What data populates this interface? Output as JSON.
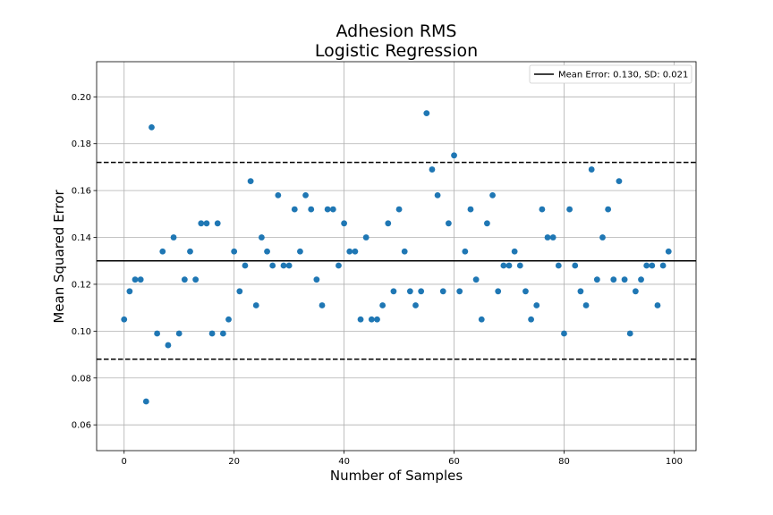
{
  "chart_data": {
    "type": "scatter",
    "title": [
      "Adhesion RMS",
      "Logistic Regression"
    ],
    "xlabel": "Number of Samples",
    "ylabel": "Mean Squared Error",
    "xlim": [
      -5,
      104
    ],
    "ylim": [
      0.049,
      0.215
    ],
    "xticks": [
      0,
      20,
      40,
      60,
      80,
      100
    ],
    "yticks": [
      0.06,
      0.08,
      0.1,
      0.12,
      0.14,
      0.16,
      0.18,
      0.2
    ],
    "ytick_labels": [
      "0.06",
      "0.08",
      "0.10",
      "0.12",
      "0.14",
      "0.16",
      "0.18",
      "0.20"
    ],
    "grid": true,
    "legend_position": "top-right",
    "mean_line": {
      "value": 0.13,
      "label": "Mean Error: 0.130, SD: 0.021",
      "color": "#000000"
    },
    "sd_band": {
      "upper": 0.172,
      "lower": 0.088,
      "style": "dashed"
    },
    "point_color": "#1f77b4",
    "x": [
      0,
      1,
      2,
      3,
      4,
      5,
      6,
      7,
      8,
      9,
      10,
      11,
      12,
      13,
      14,
      15,
      16,
      17,
      18,
      19,
      20,
      21,
      22,
      23,
      24,
      25,
      26,
      27,
      28,
      29,
      30,
      31,
      32,
      33,
      34,
      35,
      36,
      37,
      38,
      39,
      40,
      41,
      42,
      43,
      44,
      45,
      46,
      47,
      48,
      49,
      50,
      51,
      52,
      53,
      54,
      55,
      56,
      57,
      58,
      59,
      60,
      61,
      62,
      63,
      64,
      65,
      66,
      67,
      68,
      69,
      70,
      71,
      72,
      73,
      74,
      75,
      76,
      77,
      78,
      79,
      80,
      81,
      82,
      83,
      84,
      85,
      86,
      87,
      88,
      89,
      90,
      91,
      92,
      93,
      94,
      95,
      96,
      97,
      98,
      99
    ],
    "y": [
      0.105,
      0.117,
      0.122,
      0.122,
      0.07,
      0.187,
      0.099,
      0.134,
      0.094,
      0.14,
      0.099,
      0.122,
      0.134,
      0.122,
      0.146,
      0.146,
      0.099,
      0.146,
      0.099,
      0.105,
      0.134,
      0.117,
      0.128,
      0.164,
      0.111,
      0.14,
      0.134,
      0.128,
      0.158,
      0.128,
      0.128,
      0.152,
      0.134,
      0.158,
      0.152,
      0.122,
      0.111,
      0.152,
      0.152,
      0.128,
      0.146,
      0.134,
      0.134,
      0.105,
      0.14,
      0.105,
      0.105,
      0.111,
      0.146,
      0.117,
      0.152,
      0.134,
      0.117,
      0.111,
      0.117,
      0.193,
      0.169,
      0.158,
      0.117,
      0.146,
      0.175,
      0.117,
      0.134,
      0.152,
      0.122,
      0.105,
      0.146,
      0.158,
      0.117,
      0.128,
      0.128,
      0.134,
      0.128,
      0.117,
      0.105,
      0.111,
      0.152,
      0.14,
      0.14,
      0.128,
      0.099,
      0.152,
      0.128,
      0.117,
      0.111,
      0.169,
      0.122,
      0.14,
      0.152,
      0.122,
      0.164,
      0.122,
      0.099,
      0.117,
      0.122,
      0.128,
      0.128,
      0.111,
      0.128,
      0.134
    ]
  }
}
